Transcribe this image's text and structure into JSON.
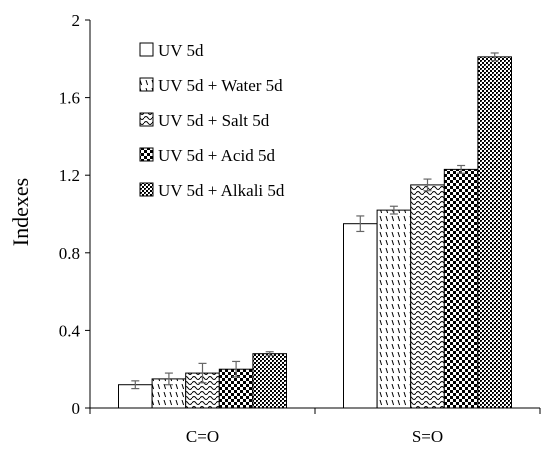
{
  "chart_data": {
    "type": "bar",
    "categories": [
      "C=O",
      "S=O"
    ],
    "ylabel": "Indexes",
    "xlabel": "",
    "ylim": [
      0,
      2
    ],
    "yticks": [
      "0",
      "0.4",
      "0.8",
      "1.2",
      "1.6",
      "2"
    ],
    "grid": false,
    "legend_position": "top-left",
    "error_bars": true,
    "series": [
      {
        "name": "UV 5d",
        "pattern": "blank",
        "values": [
          0.12,
          0.95
        ],
        "errors": [
          0.02,
          0.04
        ]
      },
      {
        "name": "UV 5d + Water 5d",
        "pattern": "dashed-vertical",
        "values": [
          0.15,
          1.02
        ],
        "errors": [
          0.03,
          0.02
        ]
      },
      {
        "name": "UV 5d + Salt 5d",
        "pattern": "wavy",
        "values": [
          0.18,
          1.15
        ],
        "errors": [
          0.05,
          0.03
        ]
      },
      {
        "name": "UV 5d + Acid 5d",
        "pattern": "checkered",
        "values": [
          0.2,
          1.23
        ],
        "errors": [
          0.04,
          0.02
        ]
      },
      {
        "name": "UV 5d + Alkali 5d",
        "pattern": "dense-dots",
        "values": [
          0.28,
          1.81
        ],
        "errors": [
          0.01,
          0.02
        ]
      }
    ]
  }
}
